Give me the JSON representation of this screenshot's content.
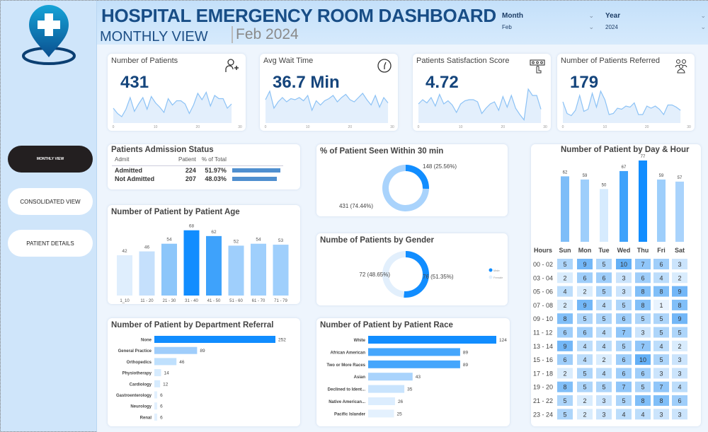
{
  "sidebar": {
    "logo": "hospital-location-pin-logo",
    "nav": [
      {
        "label": "MONTHLY VIEW",
        "active": true
      },
      {
        "label": "CONSOLIDATED VIEW",
        "active": false
      },
      {
        "label": "PATIENT DETAILS",
        "active": false
      }
    ]
  },
  "header": {
    "title": "HOSPITAL EMERGENCY ROOM DASHBOARD",
    "subtitle": "MONTHLY VIEW",
    "period": "Feb 2024",
    "filters": [
      {
        "label": "Month",
        "value": "Feb"
      },
      {
        "label": "Year",
        "value": "2024"
      }
    ]
  },
  "colors": {
    "primary": "#118dff",
    "dark_blue": "#15457c",
    "light_blue": "#9fcdfb",
    "sidebar": "#cfe5fa",
    "nav_active": "#231f20"
  },
  "kpis": [
    {
      "title": "Number of Patients",
      "value": "431",
      "icon": "patient-add-icon",
      "spark": [
        14,
        9,
        6,
        13,
        24,
        11,
        18,
        24,
        13,
        25,
        19,
        15,
        10,
        23,
        17,
        21,
        21,
        18,
        9,
        17,
        28,
        22,
        29,
        16,
        26,
        23,
        23,
        14,
        18
      ]
    },
    {
      "title": "Avg Wait Time",
      "value": "36.7 Min",
      "icon": "clock-icon",
      "spark": [
        22,
        30,
        14,
        20,
        24,
        20,
        23,
        22,
        24,
        21,
        26,
        12,
        21,
        17,
        21,
        23,
        26,
        20,
        24,
        27,
        22,
        20,
        24,
        28,
        22,
        17,
        26,
        15,
        24,
        19
      ]
    },
    {
      "title": "Patients Satisfaction Score",
      "value": "4.72",
      "icon": "rating-hand-icon",
      "spark": [
        18,
        22,
        19,
        24,
        16,
        27,
        18,
        21,
        17,
        10,
        18,
        21,
        22,
        22,
        20,
        9,
        14,
        18,
        20,
        12,
        25,
        15,
        26,
        14,
        8,
        3,
        32,
        26,
        26,
        13
      ]
    },
    {
      "title": "Number of Patients Referred",
      "value": "179",
      "icon": "people-group-icon",
      "spark": [
        20,
        9,
        7,
        12,
        26,
        11,
        13,
        28,
        15,
        30,
        22,
        8,
        9,
        14,
        13,
        16,
        15,
        19,
        8,
        8,
        16,
        14,
        16,
        13,
        8,
        17,
        17,
        15,
        12
      ]
    }
  ],
  "spark_ticks": [
    "0",
    "10",
    "20",
    "30"
  ],
  "admission": {
    "title": "Patients Admission Status",
    "columns": [
      "Admit",
      "Patient",
      "% of Total"
    ],
    "rows": [
      {
        "admit": "Admitted",
        "patient": "224",
        "pct": "51.97%",
        "value": 51.97
      },
      {
        "admit": "Not Admitted",
        "patient": "207",
        "pct": "48.03%",
        "value": 48.03
      }
    ]
  },
  "chart_data": [
    {
      "type": "bar",
      "title": "Number of Patient by Patient Age",
      "categories": [
        "1_10",
        "11 - 20",
        "21 - 30",
        "31 - 40",
        "41 - 50",
        "51 - 60",
        "61 - 70",
        "71 - 79"
      ],
      "values": [
        42,
        46,
        54,
        68,
        62,
        52,
        54,
        53
      ]
    },
    {
      "type": "pie",
      "title": "% of Patient Seen Within 30 min",
      "donut": true,
      "slices": [
        {
          "value": 148,
          "label": "148 (25.56%)"
        },
        {
          "value": 431,
          "label": "431 (74.44%)"
        }
      ]
    },
    {
      "type": "pie",
      "title": "Numbe of Patients by Gender",
      "donut": true,
      "slices": [
        {
          "name": "Male",
          "value": 76,
          "label": "76 (51.35%)"
        },
        {
          "name": "Female",
          "value": 72,
          "label": "72 (48.65%)"
        }
      ]
    },
    {
      "type": "bar",
      "orientation": "horizontal",
      "title": "Number of Patient by Department Referral",
      "categories": [
        "None",
        "General Practice",
        "Orthopedics",
        "Physiotherapy",
        "Cardiology",
        "Gastroenterology",
        "Neurology",
        "Renal"
      ],
      "values": [
        252,
        89,
        46,
        14,
        12,
        6,
        6,
        6
      ]
    },
    {
      "type": "bar",
      "orientation": "horizontal",
      "title": "Number of Patient by Patient Race",
      "categories": [
        "White",
        "African American",
        "Two or More Races",
        "Asian",
        "Declined to Ident...",
        "Native American...",
        "Pacific Islander"
      ],
      "values": [
        124,
        89,
        89,
        43,
        35,
        26,
        25
      ]
    },
    {
      "type": "bar",
      "title": "Number of Patient by Day & Hour",
      "categories": [
        "Sun",
        "Mon",
        "Tue",
        "Wed",
        "Thu",
        "Fri",
        "Sat"
      ],
      "values": [
        62,
        59,
        50,
        67,
        77,
        59,
        57
      ]
    },
    {
      "type": "heatmap",
      "row_header": "Hours",
      "rows": [
        "00 - 02",
        "03 - 04",
        "05 - 06",
        "07 - 08",
        "09 - 10",
        "11 - 12",
        "13 - 14",
        "15 - 16",
        "17 - 18",
        "19 - 20",
        "21 - 22",
        "23 - 24"
      ],
      "columns": [
        "Sun",
        "Mon",
        "Tue",
        "Wed",
        "Thu",
        "Fri",
        "Sat"
      ],
      "values": [
        [
          5,
          9,
          5,
          10,
          7,
          6,
          3
        ],
        [
          2,
          6,
          6,
          3,
          6,
          4,
          2
        ],
        [
          4,
          2,
          5,
          3,
          8,
          8,
          9
        ],
        [
          2,
          9,
          4,
          5,
          8,
          1,
          8
        ],
        [
          8,
          5,
          5,
          6,
          5,
          5,
          9
        ],
        [
          6,
          6,
          4,
          7,
          3,
          5,
          5
        ],
        [
          9,
          4,
          4,
          5,
          7,
          4,
          2
        ],
        [
          6,
          4,
          2,
          6,
          10,
          5,
          3
        ],
        [
          2,
          5,
          4,
          6,
          6,
          3,
          3
        ],
        [
          8,
          5,
          5,
          7,
          5,
          7,
          4
        ],
        [
          5,
          2,
          3,
          5,
          8,
          8,
          6
        ],
        [
          5,
          2,
          3,
          4,
          4,
          3,
          3
        ]
      ]
    }
  ]
}
